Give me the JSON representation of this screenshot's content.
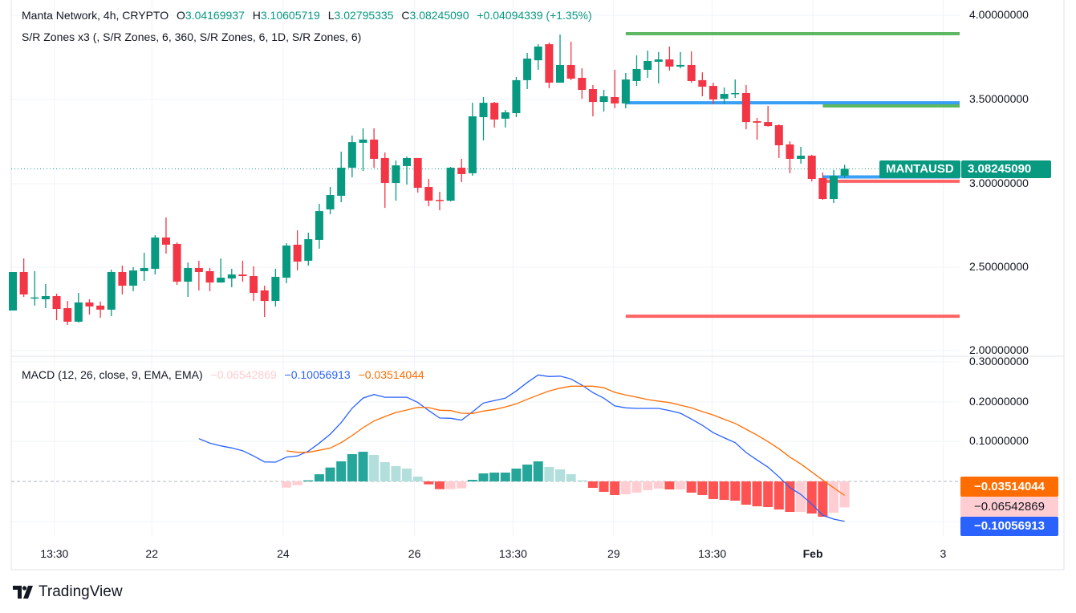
{
  "header": {
    "symbol_line": "Manta Network, 4h, CRYPTO",
    "open_label": "O",
    "open": "3.04169937",
    "high_label": "H",
    "high": "3.10605719",
    "low_label": "L",
    "low": "3.02795335",
    "close_label": "C",
    "close": "3.08245090",
    "change": "+0.04094339 (+1.35%)",
    "indicator": "S/R Zones x3 (, S/R Zones, 6, 360, S/R Zones, 6, 1D, S/R Zones, 6)"
  },
  "macd_legend": {
    "title": "MACD (12, 26, close, 9, EMA, EMA)",
    "histogram": "−0.06542869",
    "macd": "−0.10056913",
    "signal": "−0.03514044"
  },
  "price_axis": [
    "4.00000000",
    "3.50000000",
    "3.00000000",
    "2.50000000",
    "2.00000000"
  ],
  "macd_axis": [
    "0.30000000",
    "0.20000000",
    "0.10000000"
  ],
  "current_price": {
    "ticker": "MANTAUSD",
    "value": "3.08245090"
  },
  "macd_tags": {
    "signal": "−0.03514044",
    "histogram": "−0.06542869",
    "macd": "−0.10056913"
  },
  "time_axis": [
    {
      "label": "13:30",
      "at": 3.8
    },
    {
      "label": "22",
      "at": 12.7
    },
    {
      "label": "24",
      "at": 24.7
    },
    {
      "label": "26",
      "at": 36.7
    },
    {
      "label": "13:30",
      "at": 45.7
    },
    {
      "label": "29",
      "at": 54.9
    },
    {
      "label": "13:30",
      "at": 63.9
    },
    {
      "label": "Feb",
      "at": 73.1,
      "bold": true
    },
    {
      "label": "3",
      "at": 85
    }
  ],
  "brand": "TradingView",
  "colors": {
    "up": "#089981",
    "down": "#F23645",
    "macd": "#2962FF",
    "signal": "#FF6D00",
    "hist_up_strong": "#26A69A",
    "hist_up_weak": "#B2DFDB",
    "hist_down_strong": "#FF5252",
    "hist_down_weak": "#FFCDD2"
  },
  "chart_data": [
    {
      "type": "candlestick",
      "title": "Manta Network, 4h, CRYPTO",
      "ylim": [
        2.0,
        4.0
      ],
      "ohlc": [
        [
          2.236,
          2.466,
          2.236,
          2.466
        ],
        [
          2.466,
          2.547,
          2.317,
          2.332
        ],
        [
          2.31,
          2.471,
          2.265,
          2.314
        ],
        [
          2.303,
          2.394,
          2.25,
          2.322
        ],
        [
          2.322,
          2.336,
          2.178,
          2.245
        ],
        [
          2.25,
          2.293,
          2.15,
          2.169
        ],
        [
          2.169,
          2.341,
          2.164,
          2.284
        ],
        [
          2.284,
          2.303,
          2.212,
          2.26
        ],
        [
          2.265,
          2.289,
          2.193,
          2.241
        ],
        [
          2.241,
          2.48,
          2.202,
          2.466
        ],
        [
          2.466,
          2.504,
          2.332,
          2.384
        ],
        [
          2.384,
          2.495,
          2.351,
          2.475
        ],
        [
          2.471,
          2.581,
          2.413,
          2.49
        ],
        [
          2.485,
          2.686,
          2.451,
          2.672
        ],
        [
          2.672,
          2.792,
          2.576,
          2.629
        ],
        [
          2.634,
          2.643,
          2.389,
          2.408
        ],
        [
          2.408,
          2.523,
          2.317,
          2.49
        ],
        [
          2.49,
          2.533,
          2.356,
          2.466
        ],
        [
          2.471,
          2.49,
          2.351,
          2.403
        ],
        [
          2.403,
          2.547,
          2.403,
          2.432
        ],
        [
          2.427,
          2.485,
          2.375,
          2.451
        ],
        [
          2.451,
          2.533,
          2.408,
          2.442
        ],
        [
          2.442,
          2.5,
          2.293,
          2.341
        ],
        [
          2.356,
          2.384,
          2.197,
          2.293
        ],
        [
          2.293,
          2.485,
          2.26,
          2.437
        ],
        [
          2.432,
          2.638,
          2.399,
          2.624
        ],
        [
          2.629,
          2.715,
          2.475,
          2.528
        ],
        [
          2.533,
          2.701,
          2.504,
          2.662
        ],
        [
          2.658,
          2.873,
          2.605,
          2.83
        ],
        [
          2.84,
          2.974,
          2.811,
          2.926
        ],
        [
          2.921,
          3.185,
          2.883,
          3.089
        ],
        [
          3.089,
          3.281,
          3.032,
          3.242
        ],
        [
          3.238,
          3.324,
          3.07,
          3.257
        ],
        [
          3.257,
          3.324,
          3.089,
          3.142
        ],
        [
          3.147,
          3.18,
          2.849,
          2.998
        ],
        [
          2.998,
          3.132,
          2.892,
          3.103
        ],
        [
          3.099,
          3.156,
          2.988,
          3.147
        ],
        [
          3.147,
          3.147,
          2.94,
          2.969
        ],
        [
          2.974,
          3.022,
          2.859,
          2.892
        ],
        [
          2.897,
          2.945,
          2.835,
          2.892
        ],
        [
          2.892,
          3.094,
          2.888,
          3.089
        ],
        [
          3.089,
          3.142,
          3.003,
          3.051
        ],
        [
          3.056,
          3.477,
          3.041,
          3.396
        ],
        [
          3.391,
          3.511,
          3.252,
          3.477
        ],
        [
          3.477,
          3.482,
          3.329,
          3.377
        ],
        [
          3.382,
          3.434,
          3.329,
          3.42
        ],
        [
          3.415,
          3.631,
          3.391,
          3.612
        ],
        [
          3.612,
          3.775,
          3.559,
          3.741
        ],
        [
          3.731,
          3.827,
          3.674,
          3.813
        ],
        [
          3.827,
          3.837,
          3.564,
          3.597
        ],
        [
          3.597,
          3.885,
          3.597,
          3.703
        ],
        [
          3.703,
          3.842,
          3.612,
          3.621
        ],
        [
          3.626,
          3.683,
          3.501,
          3.554
        ],
        [
          3.559,
          3.583,
          3.396,
          3.482
        ],
        [
          3.482,
          3.554,
          3.425,
          3.516
        ],
        [
          3.511,
          3.674,
          3.444,
          3.473
        ],
        [
          3.473,
          3.655,
          3.444,
          3.616
        ],
        [
          3.607,
          3.76,
          3.578,
          3.679
        ],
        [
          3.674,
          3.789,
          3.626,
          3.727
        ],
        [
          3.722,
          3.78,
          3.592,
          3.736
        ],
        [
          3.736,
          3.813,
          3.669,
          3.693
        ],
        [
          3.693,
          3.78,
          3.683,
          3.703
        ],
        [
          3.703,
          3.784,
          3.597,
          3.607
        ],
        [
          3.612,
          3.659,
          3.516,
          3.573
        ],
        [
          3.578,
          3.597,
          3.468,
          3.497
        ],
        [
          3.501,
          3.568,
          3.468,
          3.53
        ],
        [
          3.531,
          3.616,
          3.506,
          3.535
        ],
        [
          3.535,
          3.583,
          3.319,
          3.362
        ],
        [
          3.367,
          3.386,
          3.257,
          3.358
        ],
        [
          3.362,
          3.458,
          3.334,
          3.338
        ],
        [
          3.343,
          3.348,
          3.147,
          3.223
        ],
        [
          3.228,
          3.247,
          3.056,
          3.142
        ],
        [
          3.142,
          3.214,
          3.113,
          3.161
        ],
        [
          3.161,
          3.166,
          3.007,
          3.022
        ],
        [
          3.027,
          3.06,
          2.897,
          2.902
        ],
        [
          2.902,
          3.075,
          2.878,
          3.041
        ],
        [
          3.0417,
          3.1061,
          3.028,
          3.0825
        ]
      ],
      "sr_zones": [
        {
          "price": 3.89,
          "from": 56,
          "color": "#4CAF50"
        },
        {
          "price": 3.477,
          "from": 56,
          "color": "#2196F3"
        },
        {
          "price": 3.458,
          "from": 74,
          "color": "#4CAF50"
        },
        {
          "price": 3.034,
          "from": 74,
          "color": "#2196F3"
        },
        {
          "price": 3.008,
          "from": 74,
          "color": "#FF5252"
        },
        {
          "price": 2.202,
          "from": 56,
          "color": "#FF5252"
        }
      ],
      "last_price": 3.0825
    },
    {
      "type": "macd",
      "ylim": [
        -0.11,
        0.3
      ],
      "start_macd": 17,
      "macd": [
        0.1077,
        0.0963,
        0.0895,
        0.0842,
        0.0774,
        0.064,
        0.0491,
        0.0485,
        0.0613,
        0.064,
        0.0761,
        0.0963,
        0.119,
        0.148,
        0.184,
        0.21,
        0.2188,
        0.212,
        0.212,
        0.212,
        0.1987,
        0.1784,
        0.1596,
        0.1589,
        0.1542,
        0.1751,
        0.1973,
        0.2034,
        0.2094,
        0.2276,
        0.249,
        0.268,
        0.264,
        0.265,
        0.258,
        0.2424,
        0.2236,
        0.2094,
        0.19,
        0.1852,
        0.1838,
        0.1838,
        0.1838,
        0.1784,
        0.1717,
        0.157,
        0.1414,
        0.1226,
        0.1098,
        0.0976,
        0.0727,
        0.0539,
        0.0357,
        0.0115,
        -0.0155,
        -0.033,
        -0.0572,
        -0.0855,
        -0.095,
        -0.1006
      ],
      "start_signal": 25,
      "signal": [
        0.0768,
        0.0734,
        0.0734,
        0.0783,
        0.084,
        0.0975,
        0.1153,
        0.1353,
        0.1521,
        0.1635,
        0.1736,
        0.1797,
        0.1866,
        0.1858,
        0.1791,
        0.1784,
        0.1717,
        0.1711,
        0.1771,
        0.1812,
        0.1872,
        0.1953,
        0.2066,
        0.2175,
        0.2276,
        0.2347,
        0.2398,
        0.2397,
        0.2398,
        0.2357,
        0.2243,
        0.2175,
        0.2121,
        0.206,
        0.202,
        0.1986,
        0.1919,
        0.1853,
        0.1757,
        0.167,
        0.1563,
        0.1461,
        0.1313,
        0.1165,
        0.1003,
        0.0822,
        0.0613,
        0.0438,
        0.0236,
        0.0034,
        -0.0162,
        -0.0352
      ],
      "histogram": [
        -0.0155,
        -0.0094,
        0.0027,
        0.018,
        0.035,
        0.0505,
        0.0687,
        0.0747,
        0.0667,
        0.0485,
        0.0384,
        0.0323,
        0.0121,
        -0.0074,
        -0.0195,
        -0.0195,
        -0.0175,
        0.004,
        0.0202,
        0.0222,
        0.0222,
        0.0323,
        0.0424,
        0.0505,
        0.0364,
        0.0303,
        0.0182,
        0.0027,
        -0.0162,
        -0.0263,
        -0.0343,
        -0.0323,
        -0.0283,
        -0.0222,
        -0.0182,
        -0.0202,
        -0.0202,
        -0.0283,
        -0.0343,
        -0.0444,
        -0.0465,
        -0.0485,
        -0.0586,
        -0.0626,
        -0.0646,
        -0.0707,
        -0.0768,
        -0.0768,
        -0.0808,
        -0.0889,
        -0.0788,
        -0.0654
      ]
    }
  ]
}
